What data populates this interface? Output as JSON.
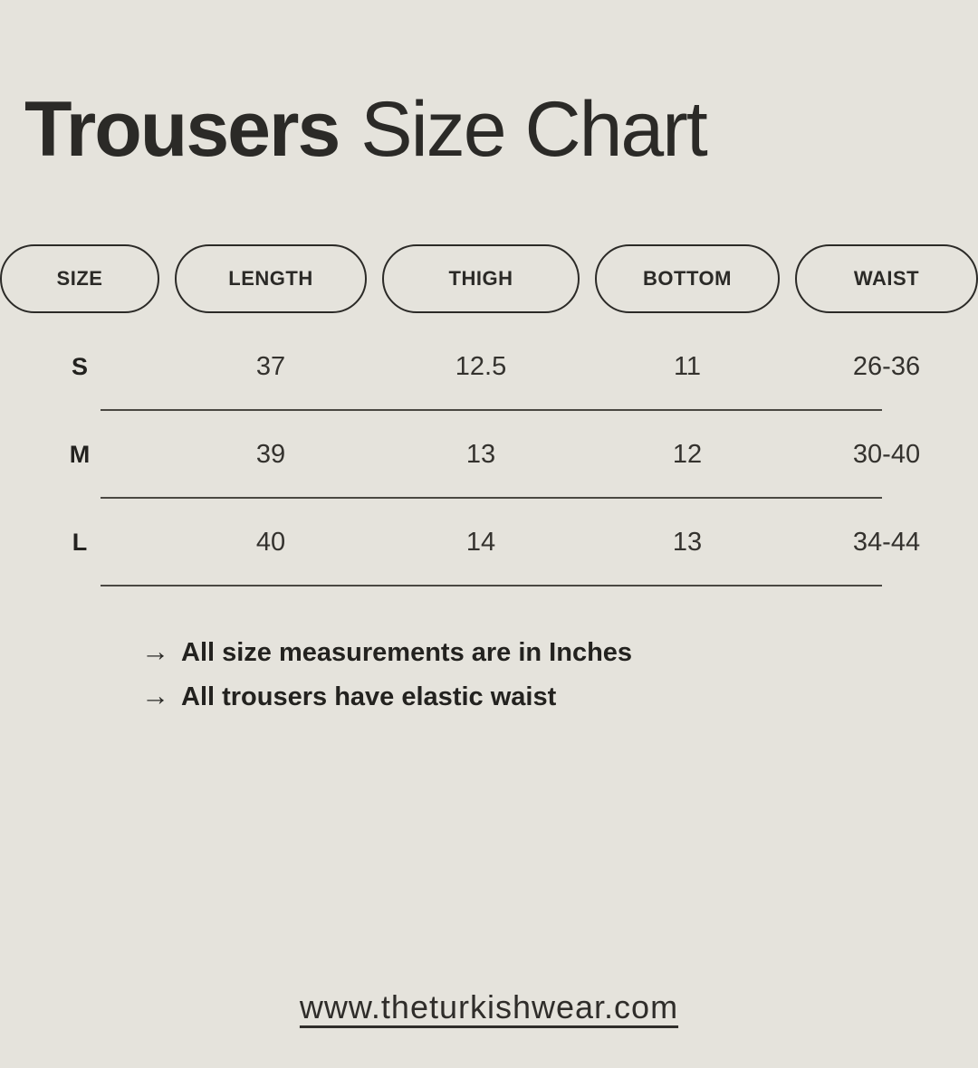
{
  "theme": {
    "background_color": "#e5e3dc",
    "ink_color": "#2b2a27",
    "row_line_color": "#4a4842"
  },
  "title": {
    "product": "Trousers",
    "suffix": "Size Chart"
  },
  "table": {
    "columns": [
      "SIZE",
      "LENGTH",
      "THIGH",
      "BOTTOM",
      "WAIST"
    ],
    "rows": [
      {
        "size": "S",
        "length": "37",
        "thigh": "12.5",
        "bottom": "11",
        "waist": "26-36"
      },
      {
        "size": "M",
        "length": "39",
        "thigh": "13",
        "bottom": "12",
        "waist": "30-40"
      },
      {
        "size": "L",
        "length": "40",
        "thigh": "14",
        "bottom": "13",
        "waist": "34-44"
      }
    ]
  },
  "notes": [
    {
      "arrow": "→",
      "text": "All size measurements are in Inches"
    },
    {
      "arrow": "→",
      "text": "All trousers have elastic waist"
    }
  ],
  "footer": {
    "website": "www.theturkishwear.com"
  }
}
